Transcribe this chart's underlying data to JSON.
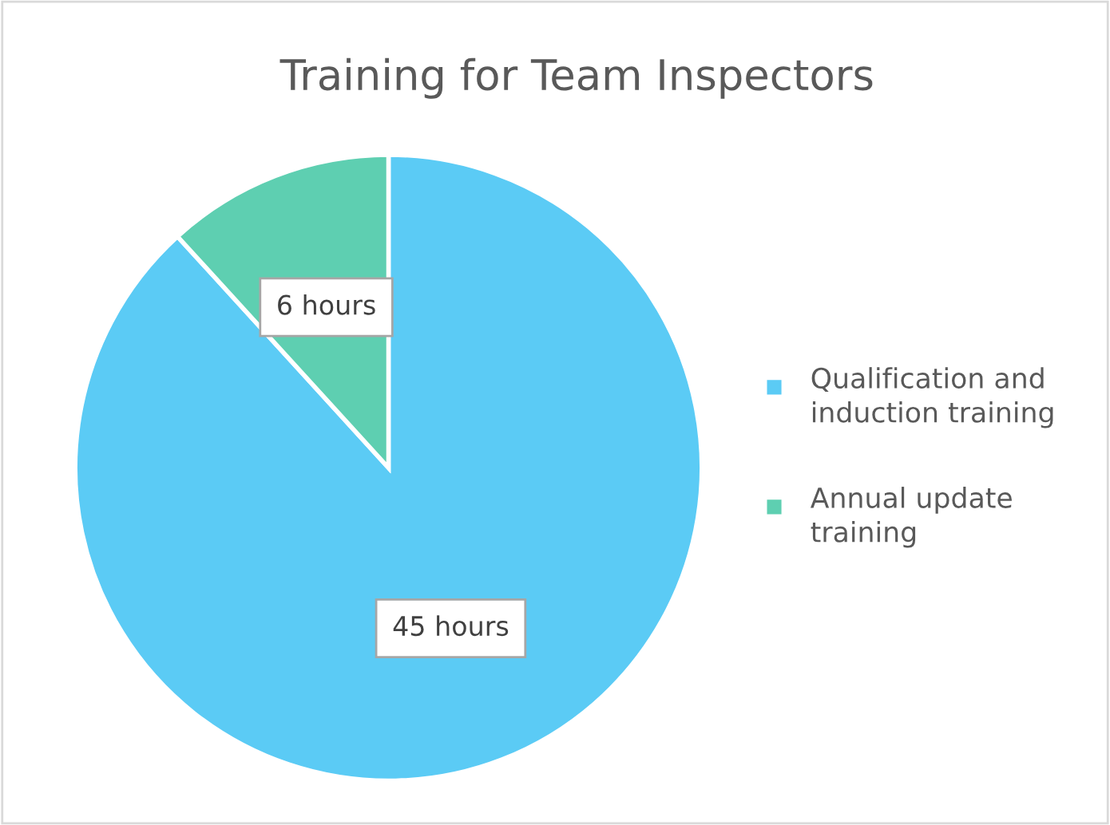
{
  "chart_data": {
    "type": "pie",
    "title": "Training for Team Inspectors",
    "categories": [
      "Qualification and induction training",
      "Annual update training"
    ],
    "values": [
      45,
      6
    ],
    "colors": [
      "#5bcbf5",
      "#5ecfb1"
    ],
    "value_labels": [
      "45 hours",
      "6 hours"
    ],
    "legend": "right"
  }
}
